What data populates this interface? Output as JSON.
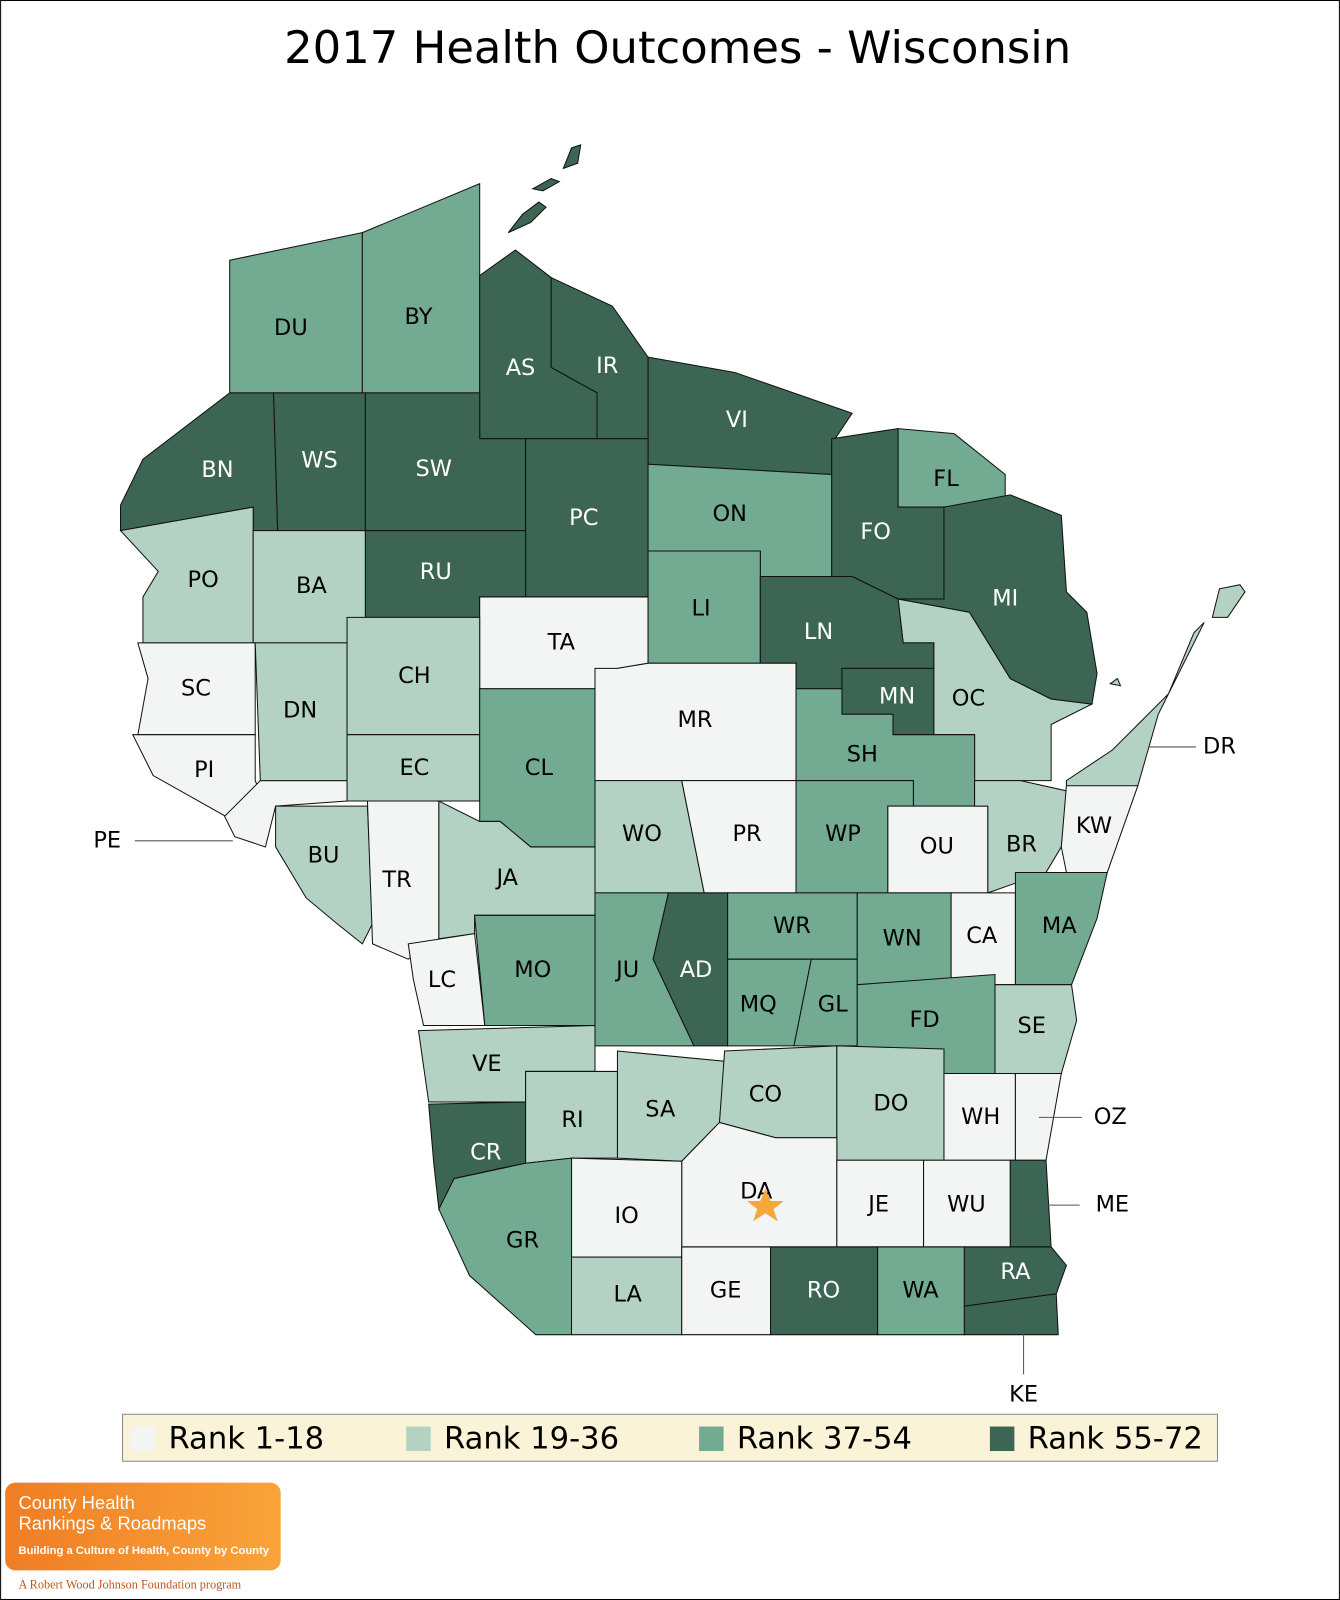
{
  "title": "2017 Health Outcomes - Wisconsin",
  "legend": [
    {
      "label": "Rank 1-18",
      "color": "#f2f5f3"
    },
    {
      "label": "Rank 19-36",
      "color": "#b4d2c3"
    },
    {
      "label": "Rank 37-54",
      "color": "#72ab91"
    },
    {
      "label": "Rank 55-72",
      "color": "#3c6553"
    }
  ],
  "counties": [
    {
      "label": "DU",
      "color": "#72ab91"
    },
    {
      "label": "BY",
      "color": "#72ab91"
    },
    {
      "label": "AS",
      "color": "#3c6553"
    },
    {
      "label": "IR",
      "color": "#3c6553"
    },
    {
      "label": "VI",
      "color": "#3c6553"
    },
    {
      "label": "BN",
      "color": "#3c6553"
    },
    {
      "label": "WS",
      "color": "#3c6553"
    },
    {
      "label": "SW",
      "color": "#3c6553"
    },
    {
      "label": "PC",
      "color": "#3c6553"
    },
    {
      "label": "ON",
      "color": "#72ab91"
    },
    {
      "label": "FL",
      "color": "#72ab91"
    },
    {
      "label": "FO",
      "color": "#3c6553"
    },
    {
      "label": "OC",
      "color": "#b4d2c3"
    },
    {
      "label": "MI",
      "color": "#3c6553"
    },
    {
      "label": "PO",
      "color": "#b4d2c3"
    },
    {
      "label": "BA",
      "color": "#b4d2c3"
    },
    {
      "label": "RU",
      "color": "#3c6553"
    },
    {
      "label": "TA",
      "color": "#f2f5f3"
    },
    {
      "label": "LI",
      "color": "#72ab91"
    },
    {
      "label": "LN",
      "color": "#3c6553"
    },
    {
      "label": "MN",
      "color": "#3c6553"
    },
    {
      "label": "SC",
      "color": "#f2f5f3"
    },
    {
      "label": "PI",
      "color": "#f2f5f3"
    },
    {
      "label": "PE",
      "color": "#f2f5f3"
    },
    {
      "label": "DN",
      "color": "#b4d2c3"
    },
    {
      "label": "CH",
      "color": "#b4d2c3"
    },
    {
      "label": "EC",
      "color": "#b4d2c3"
    },
    {
      "label": "CL",
      "color": "#72ab91"
    },
    {
      "label": "MR",
      "color": "#f2f5f3"
    },
    {
      "label": "SH",
      "color": "#72ab91"
    },
    {
      "label": "WO",
      "color": "#b4d2c3"
    },
    {
      "label": "PR",
      "color": "#f2f5f3"
    },
    {
      "label": "WP",
      "color": "#72ab91"
    },
    {
      "label": "OU",
      "color": "#f2f5f3"
    },
    {
      "label": "BR",
      "color": "#b4d2c3"
    },
    {
      "label": "DR",
      "color": "#b4d2c3"
    },
    {
      "label": "KW",
      "color": "#f2f5f3"
    },
    {
      "label": "BU",
      "color": "#b4d2c3"
    },
    {
      "label": "TR",
      "color": "#f2f5f3"
    },
    {
      "label": "JA",
      "color": "#b4d2c3"
    },
    {
      "label": "LC",
      "color": "#f2f5f3"
    },
    {
      "label": "MO",
      "color": "#72ab91"
    },
    {
      "label": "JU",
      "color": "#72ab91"
    },
    {
      "label": "AD",
      "color": "#3c6553"
    },
    {
      "label": "WR",
      "color": "#72ab91"
    },
    {
      "label": "MQ",
      "color": "#72ab91"
    },
    {
      "label": "GL",
      "color": "#72ab91"
    },
    {
      "label": "WN",
      "color": "#72ab91"
    },
    {
      "label": "CA",
      "color": "#f2f5f3"
    },
    {
      "label": "MA",
      "color": "#72ab91"
    },
    {
      "label": "FD",
      "color": "#72ab91"
    },
    {
      "label": "SE",
      "color": "#b4d2c3"
    },
    {
      "label": "VE",
      "color": "#b4d2c3"
    },
    {
      "label": "CR",
      "color": "#3c6553"
    },
    {
      "label": "RI",
      "color": "#b4d2c3"
    },
    {
      "label": "SA",
      "color": "#b4d2c3"
    },
    {
      "label": "CO",
      "color": "#b4d2c3"
    },
    {
      "label": "DO",
      "color": "#b4d2c3"
    },
    {
      "label": "WH",
      "color": "#f2f5f3"
    },
    {
      "label": "OZ",
      "color": "#f2f5f3"
    },
    {
      "label": "DA",
      "color": "#f2f5f3"
    },
    {
      "label": "IO",
      "color": "#f2f5f3"
    },
    {
      "label": "GR",
      "color": "#72ab91"
    },
    {
      "label": "JE",
      "color": "#f2f5f3"
    },
    {
      "label": "WU",
      "color": "#f2f5f3"
    },
    {
      "label": "ME",
      "color": "#3c6553"
    },
    {
      "label": "LA",
      "color": "#b4d2c3"
    },
    {
      "label": "GE",
      "color": "#f2f5f3"
    },
    {
      "label": "RO",
      "color": "#3c6553"
    },
    {
      "label": "WA",
      "color": "#72ab91"
    },
    {
      "label": "RA",
      "color": "#3c6553"
    },
    {
      "label": "KE",
      "color": "#3c6553"
    }
  ],
  "logo": {
    "line1": "County Health",
    "line2": "Rankings & Roadmaps",
    "tagline": "Building a Culture of Health, County by County",
    "footer": "A Robert Wood Johnson Foundation program"
  }
}
